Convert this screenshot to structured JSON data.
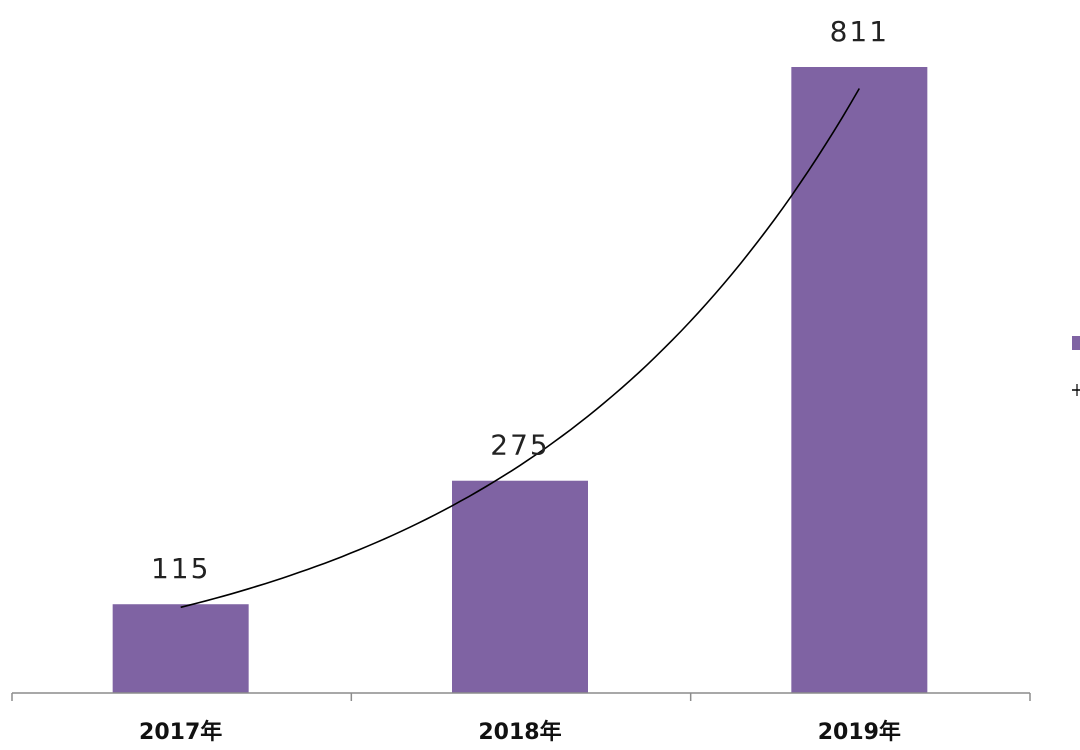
{
  "chart_data": {
    "type": "bar",
    "categories": [
      "2017年",
      "2018年",
      "2019年"
    ],
    "values": [
      115,
      275,
      811
    ],
    "data_labels": [
      "115",
      "275",
      "811"
    ],
    "title": "",
    "xlabel": "",
    "ylabel": "",
    "ylim": [
      0,
      900
    ],
    "grid": false,
    "trendline": {
      "type": "exponential",
      "color": "#000000"
    },
    "bar_color": "#7f63a3",
    "legend": {
      "placement": "right",
      "partially_visible": true
    }
  }
}
